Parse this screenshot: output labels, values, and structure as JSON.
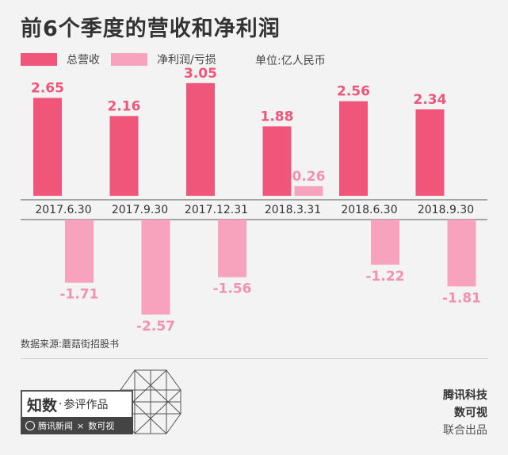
{
  "header": {
    "title": "前6个季度的营收和净利润"
  },
  "legend": {
    "revenue_label": "总营收",
    "profit_label": "净利润/亏损",
    "unit_label": "单位:亿人民币"
  },
  "colors": {
    "revenue": "#f0567a",
    "profit": "#f7a3bd",
    "revenue_label": "#f0567a",
    "profit_label": "#f092b0"
  },
  "footer": {
    "source": "数据来源:蘑菇街招股书",
    "credit_1": "腾讯科技",
    "credit_2": "数可视",
    "credit_3": "联合出品"
  },
  "badge": {
    "main_1": "知数",
    "main_sep": "·",
    "main_2": "参评作品",
    "sub_1": "腾讯新闻",
    "sub_x": "×",
    "sub_2": "数可视"
  },
  "chart_data": {
    "type": "bar",
    "categories": [
      "2017.6.30",
      "2017.9.30",
      "2017.12.31",
      "2018.3.31",
      "2018.6.30",
      "2018.9.30"
    ],
    "series": [
      {
        "name": "总营收",
        "values": [
          2.65,
          2.16,
          3.05,
          1.88,
          2.56,
          2.34
        ],
        "labels": [
          "2.65",
          "2.16",
          "3.05",
          "1.88",
          "2.56",
          "2.34"
        ]
      },
      {
        "name": "净利润/亏损",
        "values": [
          -1.71,
          -2.57,
          -1.56,
          0.26,
          -1.22,
          -1.81
        ],
        "labels": [
          "-1.71",
          "-2.57",
          "-1.56",
          "0.26",
          "-1.22",
          "-1.81"
        ]
      }
    ],
    "title": "前6个季度的营收和净利润",
    "ylabel": "",
    "unit": "单位:亿人民币"
  }
}
